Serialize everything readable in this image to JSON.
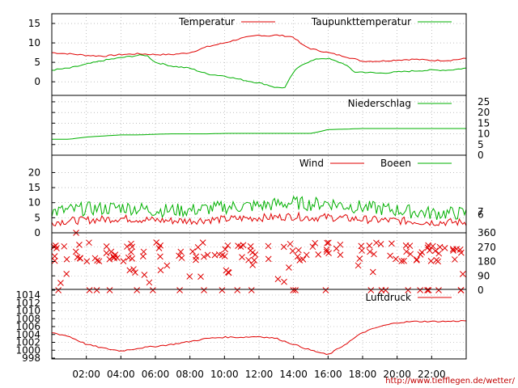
{
  "footer_url": "http://www.tiefflegen.de/wetter/",
  "x_axis": {
    "labels": [
      "02:00",
      "04:00",
      "06:00",
      "08:00",
      "10:00",
      "12:00",
      "14:00",
      "16:00",
      "18:00",
      "20:00",
      "22:00"
    ],
    "positions_hours": [
      2,
      4,
      6,
      8,
      10,
      12,
      14,
      16,
      18,
      20,
      22
    ],
    "range_hours": [
      0,
      24
    ]
  },
  "colors": {
    "series_red": "#e00000",
    "series_green": "#00b000",
    "grid": "#999999",
    "axis": "#000000"
  },
  "chart_data": [
    {
      "type": "line",
      "panel": "temperature",
      "grid": true,
      "legend_placement": "top-right",
      "y_ticks": [
        0,
        5,
        10,
        15
      ],
      "ylim": [
        -3.5,
        17.5
      ],
      "xlim": [
        0,
        24
      ],
      "series": [
        {
          "name": "Temperatur",
          "color": "#e00000",
          "x": [
            0,
            1,
            2,
            3,
            4,
            5,
            6,
            7,
            8,
            9,
            10,
            11,
            12,
            12.5,
            13,
            13.5,
            14,
            14.5,
            15,
            15.5,
            16,
            17,
            18,
            19,
            20,
            21,
            22,
            23,
            24
          ],
          "y": [
            7.5,
            7.2,
            6.8,
            6.6,
            7.0,
            7.2,
            7.0,
            7.0,
            7.5,
            9.0,
            10.0,
            11.2,
            12.0,
            11.8,
            12.0,
            11.8,
            11.5,
            9.5,
            8.5,
            8.0,
            7.5,
            6.5,
            5.3,
            5.3,
            5.6,
            5.8,
            5.5,
            5.5,
            6.0
          ]
        },
        {
          "name": "Taupunkttemperatur",
          "color": "#00b000",
          "x": [
            0,
            1,
            2,
            3,
            4,
            5,
            5.5,
            6,
            7,
            8,
            9,
            10,
            11,
            12,
            12.5,
            13,
            13.5,
            14,
            14.5,
            15,
            15.5,
            16,
            16.5,
            17,
            17.5,
            18,
            19,
            20,
            21,
            22,
            23,
            24
          ],
          "y": [
            3.0,
            3.5,
            4.5,
            5.5,
            6.2,
            6.8,
            6.8,
            5.0,
            4.0,
            3.5,
            2.0,
            1.5,
            0.5,
            -0.3,
            -0.8,
            -1.5,
            -1.5,
            2.5,
            4.5,
            5.3,
            6.0,
            6.0,
            5.2,
            4.5,
            2.5,
            2.5,
            2.2,
            2.5,
            2.8,
            3.0,
            3.0,
            3.5
          ]
        }
      ]
    },
    {
      "type": "line",
      "panel": "precipitation",
      "grid": true,
      "legend_placement": "top-right",
      "y_ticks": [
        0,
        5,
        10,
        15,
        20,
        25
      ],
      "ylim": [
        0,
        28
      ],
      "xlim": [
        0,
        24
      ],
      "series": [
        {
          "name": "Niederschlag",
          "color": "#00b000",
          "x": [
            0,
            1,
            2,
            3,
            4,
            5,
            6,
            7,
            8,
            9,
            10,
            11,
            12,
            13,
            14,
            15,
            15.5,
            16,
            17,
            18,
            19,
            20,
            21,
            22,
            23,
            24
          ],
          "y": [
            7.5,
            7.5,
            8.5,
            9.0,
            9.5,
            9.5,
            9.8,
            10.0,
            10.0,
            10.0,
            10.2,
            10.2,
            10.2,
            10.2,
            10.2,
            10.2,
            11.0,
            12.0,
            12.2,
            12.5,
            12.5,
            12.5,
            12.5,
            12.5,
            12.5,
            12.5
          ]
        }
      ]
    },
    {
      "type": "line",
      "panel": "wind",
      "grid": true,
      "legend_placement": "top-right",
      "y_ticks_left": [
        0,
        5,
        10,
        15,
        20
      ],
      "y_ticks_right": [
        6,
        7
      ],
      "ylim": [
        0,
        22
      ],
      "xlim": [
        0,
        24
      ],
      "series": [
        {
          "name": "Wind",
          "color": "#e00000",
          "x": [
            0,
            1,
            2,
            3,
            4,
            5,
            6,
            7,
            8,
            9,
            10,
            11,
            12,
            13,
            14,
            15,
            16,
            17,
            18,
            19,
            20,
            21,
            22,
            23,
            24
          ],
          "y": [
            3.5,
            4.0,
            4.2,
            4.5,
            4.8,
            4.5,
            4.2,
            4.0,
            4.0,
            4.3,
            4.5,
            4.8,
            5.0,
            5.2,
            5.5,
            5.0,
            5.2,
            4.8,
            4.5,
            4.2,
            4.0,
            3.8,
            3.5,
            3.5,
            3.5
          ],
          "noise": 1.3
        },
        {
          "name": "Boeen",
          "color": "#00b000",
          "x": [
            0,
            1,
            2,
            3,
            4,
            5,
            6,
            7,
            8,
            9,
            10,
            11,
            12,
            13,
            14,
            15,
            16,
            17,
            18,
            19,
            20,
            21,
            22,
            23,
            24
          ],
          "y": [
            7.0,
            7.5,
            8.0,
            8.0,
            8.5,
            8.0,
            7.5,
            7.5,
            7.5,
            8.0,
            8.5,
            8.8,
            9.0,
            9.5,
            10.0,
            9.5,
            10.0,
            9.0,
            8.5,
            8.0,
            7.5,
            7.0,
            6.5,
            6.5,
            6.5
          ],
          "noise": 2.3
        }
      ]
    },
    {
      "type": "scatter",
      "panel": "wind_direction",
      "grid": true,
      "y_ticks": [
        0,
        90,
        180,
        270,
        360
      ],
      "ylim": [
        0,
        360
      ],
      "xlim": [
        0,
        24
      ],
      "series": [
        {
          "name": "",
          "color": "#e00000",
          "marker": "x",
          "points_hint": "dense band 180-300 deg across day, scattered points at 0, 45-135 and 360 deg"
        }
      ]
    },
    {
      "type": "line",
      "panel": "pressure",
      "grid": true,
      "legend_placement": "top-right",
      "y_ticks": [
        998,
        1000,
        1002,
        1004,
        1006,
        1008,
        1010,
        1012,
        1014
      ],
      "ylim": [
        998,
        1014
      ],
      "xlim": [
        0,
        24
      ],
      "series": [
        {
          "name": "Luftdruck",
          "color": "#e00000",
          "x": [
            0,
            1,
            2,
            3,
            4,
            5,
            6,
            7,
            8,
            9,
            10,
            11,
            12,
            13,
            14,
            15,
            16,
            17,
            18,
            19,
            20,
            21,
            22,
            23,
            24
          ],
          "y": [
            1004.5,
            1003.5,
            1001.5,
            1000.5,
            999.8,
            1000.5,
            1001.0,
            1001.5,
            1002.2,
            1003.0,
            1003.3,
            1003.3,
            1003.5,
            1003.0,
            1001.5,
            1000.0,
            998.8,
            1001.5,
            1004.5,
            1006.0,
            1007.0,
            1007.3,
            1007.3,
            1007.3,
            1007.5
          ]
        }
      ]
    }
  ]
}
